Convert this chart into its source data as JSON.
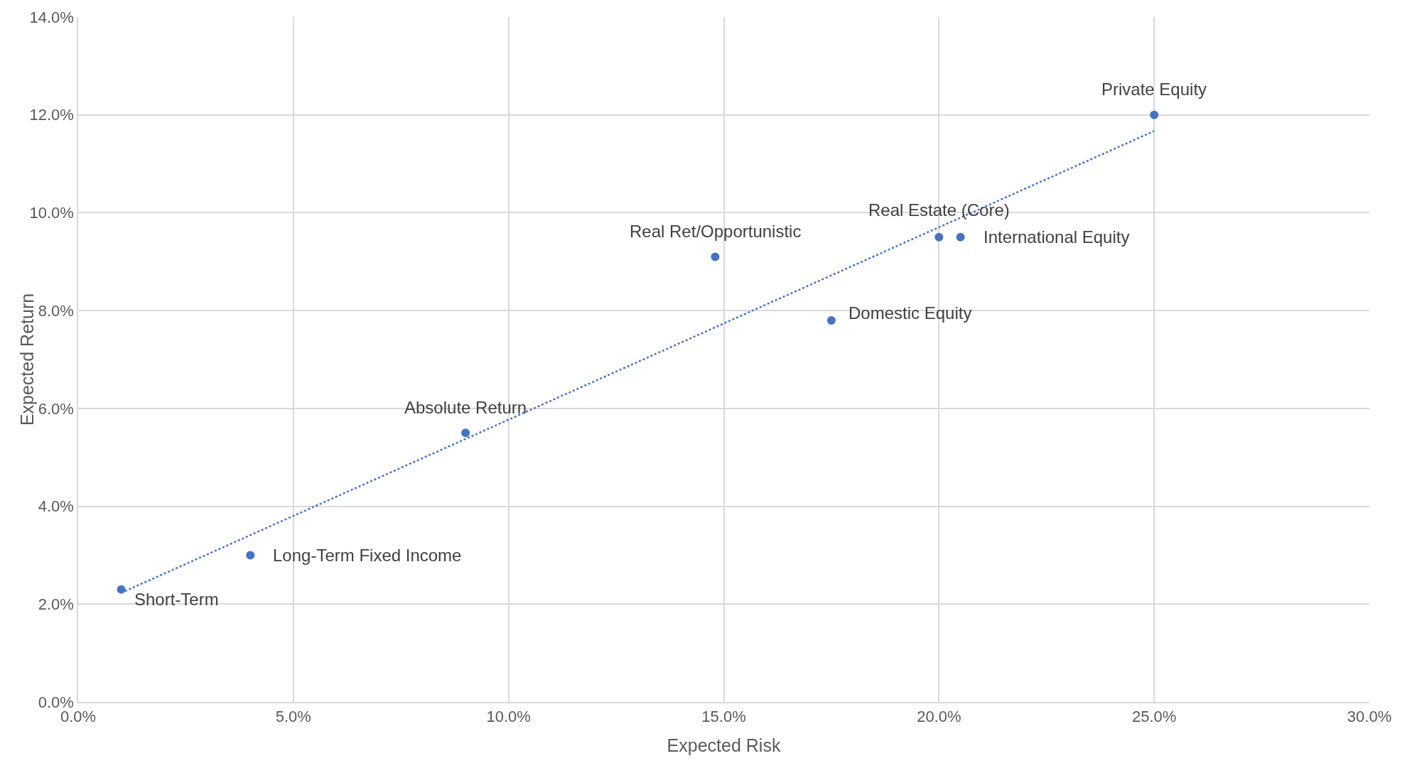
{
  "chart_data": {
    "type": "scatter",
    "xlabel": "Expected Risk",
    "ylabel": "Expected Return",
    "series": [
      {
        "type": "scatter",
        "color": "#4472c4",
        "x": [
          1.0,
          4.0,
          9.0,
          14.8,
          17.5,
          20.0,
          20.5,
          25.0
        ],
        "values": [
          2.3,
          3.0,
          5.5,
          9.1,
          7.8,
          9.5,
          9.5,
          12.0
        ],
        "marker": "circle"
      },
      {
        "type": "line",
        "color": "#4472c4",
        "x": [
          1.0,
          25.0
        ],
        "values": [
          2.23,
          11.67
        ],
        "line_style": "dotted",
        "marker": "none"
      }
    ],
    "annotations": [
      {
        "text": "Short-Term",
        "x": 1.0,
        "y": 2.3
      },
      {
        "text": "Long-Term Fixed Income",
        "x": 4.0,
        "y": 3.0
      },
      {
        "text": "Absolute Return",
        "x": 9.0,
        "y": 5.5
      },
      {
        "text": "Real Ret/Opportunistic",
        "x": 14.8,
        "y": 9.1
      },
      {
        "text": "Domestic Equity",
        "x": 17.5,
        "y": 7.8
      },
      {
        "text": "Real Estate (Core)",
        "x": 20.0,
        "y": 9.5
      },
      {
        "text": "International Equity",
        "x": 20.5,
        "y": 9.5
      },
      {
        "text": "Private Equity",
        "x": 25.0,
        "y": 12.0
      }
    ],
    "xlim": [
      0,
      30
    ],
    "xticks": [
      {
        "value": 0,
        "label": "0.0%"
      },
      {
        "value": 5,
        "label": "5.0%"
      },
      {
        "value": 10,
        "label": "10.0%"
      },
      {
        "value": 15,
        "label": "15.0%"
      },
      {
        "value": 20,
        "label": "20.0%"
      },
      {
        "value": 25,
        "label": "25.0%"
      },
      {
        "value": 30,
        "label": "30.0%"
      }
    ],
    "ylim": [
      0,
      14
    ],
    "yticks": [
      {
        "value": 0,
        "label": "0.0%"
      },
      {
        "value": 2,
        "label": "2.0%"
      },
      {
        "value": 4,
        "label": "4.0%"
      },
      {
        "value": 6,
        "label": "6.0%"
      },
      {
        "value": 8,
        "label": "8.0%"
      },
      {
        "value": 10,
        "label": "10.0%"
      },
      {
        "value": 12,
        "label": "12.0%"
      },
      {
        "value": 14,
        "label": "14.0%"
      }
    ],
    "grid": true
  }
}
